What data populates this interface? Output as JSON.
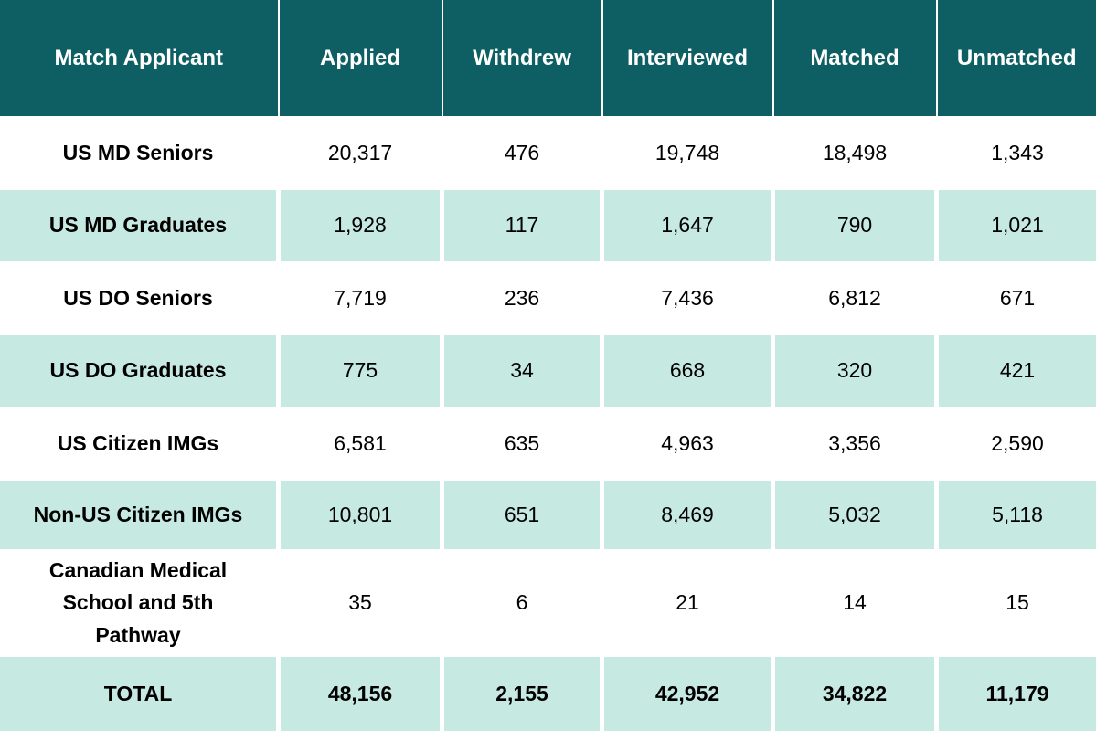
{
  "chart_data": {
    "type": "table",
    "title": "Match Applicant outcomes table",
    "columns": [
      "Match Applicant",
      "Applied",
      "Withdrew",
      "Interviewed",
      "Matched",
      "Unmatched"
    ],
    "rows": [
      {
        "label": "US MD Seniors",
        "values": [
          "20,317",
          "476",
          "19,748",
          "18,498",
          "1,343"
        ]
      },
      {
        "label": "US MD Graduates",
        "values": [
          "1,928",
          "117",
          "1,647",
          "790",
          "1,021"
        ]
      },
      {
        "label": "US DO Seniors",
        "values": [
          "7,719",
          "236",
          "7,436",
          "6,812",
          "671"
        ]
      },
      {
        "label": "US DO Graduates",
        "values": [
          "775",
          "34",
          "668",
          "320",
          "421"
        ]
      },
      {
        "label": "US Citizen IMGs",
        "values": [
          "6,581",
          "635",
          "4,963",
          "3,356",
          "2,590"
        ]
      },
      {
        "label": "Non-US Citizen IMGs",
        "values": [
          "10,801",
          "651",
          "8,469",
          "5,032",
          "5,118"
        ]
      },
      {
        "label": "Canadian Medical School and 5th Pathway",
        "values": [
          "35",
          "6",
          "21",
          "14",
          "15"
        ]
      },
      {
        "label": "TOTAL",
        "values": [
          "48,156",
          "2,155",
          "42,952",
          "34,822",
          "11,179"
        ]
      }
    ],
    "layout": {
      "striped": true,
      "stripe_pattern": "white, mint alternating",
      "total_row_bold": true
    },
    "colors": {
      "header_bg": "#0d5f63",
      "header_text": "#ffffff",
      "stripe_bg": "#c6eae1",
      "row_bg": "#ffffff",
      "body_text": "#000000"
    }
  }
}
